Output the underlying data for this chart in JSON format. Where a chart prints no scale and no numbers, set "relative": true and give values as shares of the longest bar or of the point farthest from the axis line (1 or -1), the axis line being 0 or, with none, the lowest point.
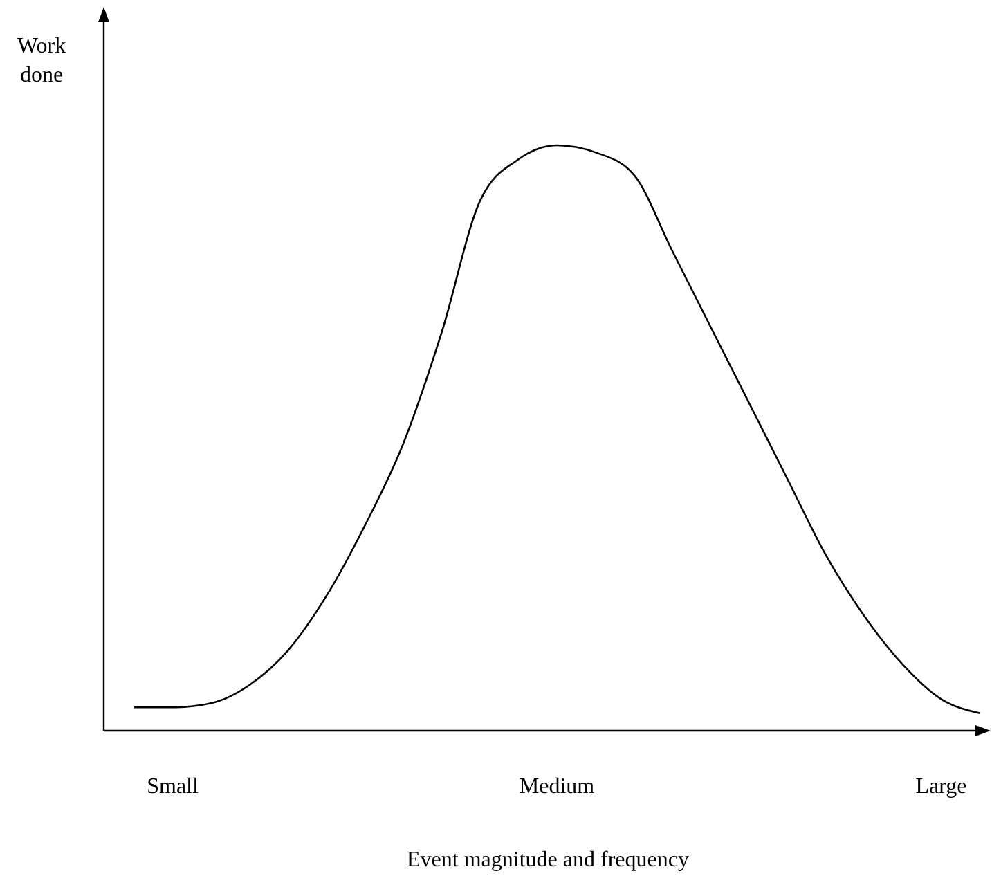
{
  "chart_data": {
    "type": "line",
    "relative": true,
    "xlabel": "Event magnitude and frequency",
    "ylabel": "Work done",
    "tick_labels": "x",
    "categories": [
      null,
      "Small",
      null,
      null,
      null,
      null,
      null,
      null,
      null,
      null,
      null,
      "Medium",
      null,
      null,
      null,
      null,
      null,
      null,
      null,
      null,
      null,
      "Large",
      null
    ],
    "series": [
      {
        "color": "#000000",
        "values": [
          0.04,
          0.04,
          0.047,
          0.078,
          0.137,
          0.23,
          0.35,
          0.49,
          0.68,
          0.905,
          0.976,
          1,
          0.988,
          0.95,
          0.82,
          0.69,
          0.56,
          0.43,
          0.3,
          0.196,
          0.113,
          0.054,
          0.03
        ]
      }
    ]
  }
}
